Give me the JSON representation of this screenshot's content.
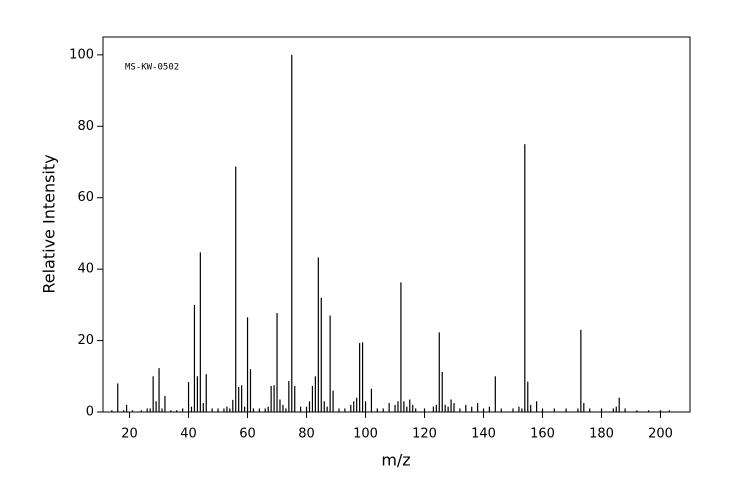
{
  "chart_data": {
    "type": "stem",
    "annotation": "MS-KW-0502",
    "x_label": "m/z",
    "y_label": "Relative Intensity",
    "x": [
      14,
      16,
      18,
      19,
      21,
      24,
      26,
      27,
      28,
      29,
      30,
      31,
      32,
      34,
      36,
      38,
      40,
      41,
      42,
      43,
      44,
      45,
      46,
      48,
      50,
      52,
      53,
      54,
      55,
      56,
      57,
      58,
      59,
      60,
      61,
      62,
      64,
      66,
      67,
      68,
      69,
      70,
      71,
      72,
      73,
      74,
      75,
      76,
      78,
      80,
      81,
      82,
      83,
      84,
      85,
      86,
      87,
      88,
      89,
      91,
      93,
      95,
      96,
      97,
      98,
      99,
      100,
      102,
      104,
      106,
      108,
      110,
      111,
      112,
      113,
      114,
      115,
      116,
      117,
      120,
      123,
      124,
      125,
      126,
      127,
      128,
      129,
      130,
      132,
      134,
      136,
      138,
      140,
      142,
      144,
      146,
      150,
      152,
      153,
      154,
      155,
      156,
      158,
      160,
      164,
      168,
      172,
      173,
      174,
      176,
      180,
      184,
      185,
      186,
      188,
      192,
      196,
      200,
      203
    ],
    "values": [
      0.5,
      8,
      0.5,
      2,
      0.5,
      0.5,
      1,
      1,
      10,
      3,
      12.3,
      1,
      4.5,
      0.5,
      0.5,
      1,
      8.4,
      1.5,
      30,
      10,
      44.7,
      2.5,
      10.6,
      1,
      1,
      1,
      1.5,
      1,
      3.4,
      68.7,
      7,
      7.5,
      1.5,
      26.5,
      12,
      1,
      1,
      1,
      1.5,
      7.3,
      7.5,
      27.7,
      3.5,
      2,
      1,
      8.7,
      100,
      7.3,
      1.5,
      1.5,
      3,
      7.3,
      10,
      43.3,
      32,
      3,
      1.5,
      27,
      6,
      1,
      1,
      2,
      3,
      4,
      19.3,
      19.5,
      3,
      6.5,
      1,
      1,
      2.5,
      2,
      3,
      36.3,
      3,
      1.5,
      3.5,
      2,
      1,
      1,
      1.5,
      2,
      22.3,
      11.2,
      2,
      1.5,
      3.5,
      2.5,
      1,
      2,
      1.5,
      2.5,
      1,
      1.5,
      10,
      1,
      1,
      1.5,
      1,
      75,
      8.5,
      2,
      3,
      1,
      1,
      1,
      1,
      23,
      2.5,
      1,
      1,
      1,
      1.5,
      4,
      1,
      0.5,
      0.5,
      0.5,
      0.5
    ],
    "color": "#000000",
    "xlim": [
      11,
      210
    ],
    "ylim": [
      0,
      105
    ],
    "xticks": [
      20,
      40,
      60,
      80,
      100,
      120,
      140,
      160,
      180,
      200
    ],
    "yticks": [
      0,
      20,
      40,
      60,
      80,
      100
    ]
  }
}
